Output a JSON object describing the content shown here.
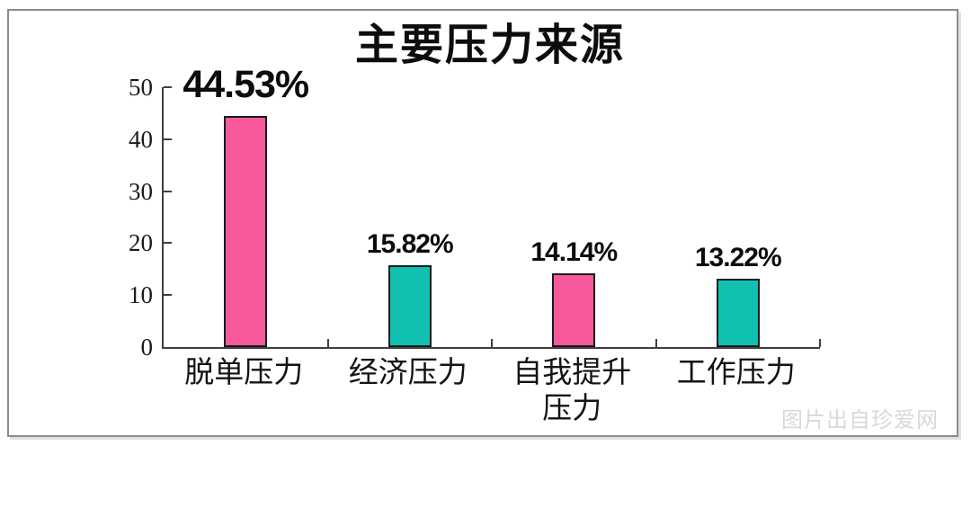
{
  "chart_data": {
    "type": "bar",
    "title": "主要压力来源",
    "categories": [
      "脱单压力",
      "经济压力",
      "自我提升压力",
      "工作压力"
    ],
    "values": [
      44.53,
      15.82,
      14.14,
      13.22
    ],
    "value_labels": [
      "44.53%",
      "15.82%",
      "14.14%",
      "13.22%"
    ],
    "value_label_emphasis": [
      true,
      false,
      false,
      false
    ],
    "bar_colors": [
      "#F7599C",
      "#10C1B1",
      "#F7599C",
      "#10C1B1"
    ],
    "xlabel": "",
    "ylabel": "",
    "ylim": [
      0,
      50
    ],
    "yticks": [
      0,
      10,
      20,
      30,
      40,
      50
    ],
    "grid": false,
    "legend": "none"
  },
  "watermark": "图片出自珍爱网",
  "colors": {
    "pink": "#F7599C",
    "teal": "#10C1B1",
    "axis": "#3f3f3f",
    "frame_border": "#8c8c8c",
    "title_text": "#0d0d0d",
    "watermark_text": "#d9d9d9"
  }
}
